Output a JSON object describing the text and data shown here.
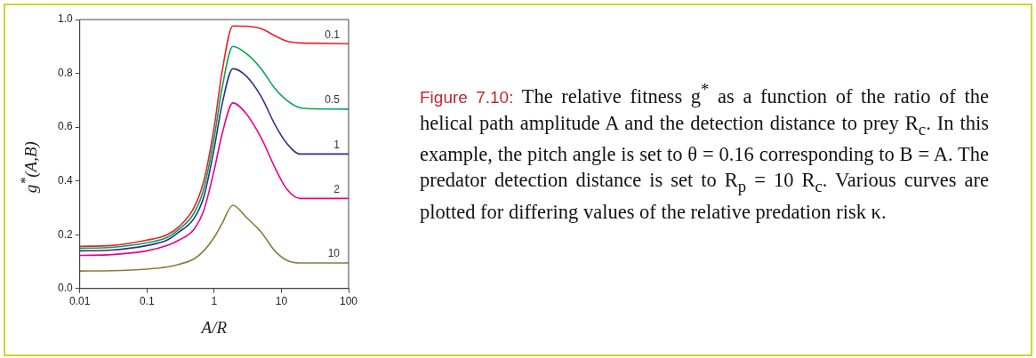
{
  "chart_data": {
    "type": "line",
    "xlabel": "A/R",
    "ylabel": "g$^{*}$(A,B)",
    "annotations": [
      "Figure 7.10:",
      "The relative fitness g$^{*}$ as a function of the ratio of the helical path amplitude A and the detection distance to prey R$_{c}$. In this example, the pitch angle is set to θ = 0.16 corresponding to B = A. The predator detection distance is set to R$_{p}$ = 10 R$_{c}$. Various curves are plotted for differing values of the relative predation risk κ."
    ],
    "x": [
      0.01,
      0.03,
      0.1,
      0.2,
      0.3,
      0.5,
      0.7,
      1,
      1.3,
      1.9,
      3,
      5,
      8,
      12,
      19,
      30,
      100
    ],
    "series": [
      {
        "name": "0.1",
        "color": "#e8212b",
        "values": [
          0.157,
          0.16,
          0.18,
          0.2,
          0.23,
          0.3,
          0.4,
          0.6,
          0.8,
          0.976,
          0.975,
          0.966,
          0.94,
          0.92,
          0.913,
          0.912,
          0.91
        ]
      },
      {
        "name": "0.5",
        "color": "#00a651",
        "values": [
          0.15,
          0.153,
          0.17,
          0.19,
          0.22,
          0.28,
          0.37,
          0.56,
          0.74,
          0.9,
          0.874,
          0.817,
          0.744,
          0.7,
          0.672,
          0.668,
          0.667
        ]
      },
      {
        "name": "1",
        "color": "#2e3192",
        "values": [
          0.14,
          0.143,
          0.16,
          0.18,
          0.21,
          0.26,
          0.34,
          0.52,
          0.68,
          0.817,
          0.79,
          0.714,
          0.61,
          0.54,
          0.5,
          0.5,
          0.5
        ]
      },
      {
        "name": "2",
        "color": "#ec008c",
        "values": [
          0.123,
          0.126,
          0.14,
          0.16,
          0.18,
          0.22,
          0.29,
          0.44,
          0.57,
          0.69,
          0.65,
          0.56,
          0.45,
          0.37,
          0.335,
          0.335,
          0.335
        ]
      },
      {
        "name": "10",
        "color": "#8c7a3a",
        "values": [
          0.065,
          0.066,
          0.072,
          0.08,
          0.09,
          0.11,
          0.14,
          0.19,
          0.24,
          0.31,
          0.265,
          0.21,
          0.14,
          0.105,
          0.095,
          0.095,
          0.095
        ]
      }
    ],
    "log": "x",
    "xlim": [
      0.01,
      100
    ],
    "xticks": [
      0.01,
      0.1,
      1,
      10,
      100
    ],
    "ylim": [
      0,
      1
    ],
    "yticks": [
      {
        "value": 0,
        "label": "0.0"
      },
      0.2,
      0.4,
      0.6,
      0.8,
      {
        "value": 1,
        "label": "1.0"
      }
    ],
    "grid": false,
    "legend": false,
    "marker": "none",
    "line_style": "solid"
  }
}
